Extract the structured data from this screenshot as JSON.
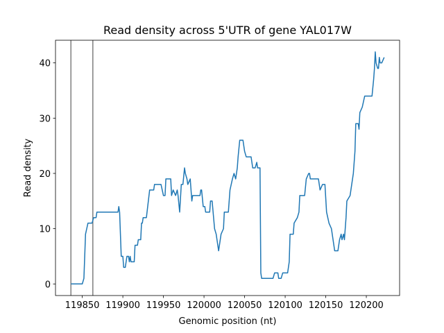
{
  "chart_data": {
    "type": "line",
    "title": "Read density across 5'UTR of gene YAL017W",
    "xlabel": "Genomic position (nt)",
    "ylabel": "Read density",
    "color": "#1f77b4",
    "vlines": [
      119836,
      119863
    ],
    "vline_color": "#7f7f7f",
    "x": [
      119836,
      119850,
      119852,
      119854,
      119857,
      119862,
      119864,
      119867,
      119868,
      119894,
      119895,
      119896,
      119898,
      119900,
      119901,
      119903,
      119905,
      119907,
      119908,
      119909,
      119910,
      119914,
      119915,
      119918,
      119919,
      119922,
      119923,
      119924,
      119925,
      119929,
      119933,
      119938,
      119939,
      119947,
      119950,
      119952,
      119953,
      119959,
      119960,
      119962,
      119965,
      119967,
      119968,
      119970,
      119972,
      119974,
      119976,
      119977,
      119979,
      119980,
      119983,
      119985,
      119986,
      119995,
      119996,
      119997,
      119999,
      120001,
      120002,
      120007,
      120008,
      120010,
      120013,
      120015,
      120018,
      120021,
      120024,
      120025,
      120030,
      120032,
      120035,
      120037,
      120039,
      120041,
      120042,
      120044,
      120048,
      120050,
      120052,
      120058,
      120060,
      120063,
      120065,
      120066,
      120069,
      120070,
      120071,
      120085,
      120087,
      120091,
      120092,
      120095,
      120097,
      120103,
      120105,
      120106,
      120110,
      120111,
      120115,
      120117,
      120118,
      120124,
      120126,
      120129,
      120130,
      120131,
      120141,
      120143,
      120146,
      120149,
      120151,
      120154,
      120157,
      120158,
      120161,
      120165,
      120167,
      120169,
      120170,
      120172,
      120173,
      120175,
      120176,
      120180,
      120182,
      120184,
      120186,
      120187,
      120190,
      120191,
      120192,
      120195,
      120198,
      120207,
      120209,
      120210,
      120211,
      120212,
      120214,
      120215,
      120216,
      120217,
      120219,
      120222
    ],
    "values": [
      0,
      0,
      1,
      9,
      11,
      11,
      12,
      12,
      13,
      13,
      14,
      13,
      5,
      5,
      3,
      3,
      5,
      5,
      4,
      5,
      4,
      4,
      7,
      7,
      8,
      8,
      11,
      11,
      12,
      12,
      17,
      17,
      18,
      18,
      16,
      16,
      19,
      19,
      16,
      17,
      16,
      17,
      16,
      13,
      18,
      18,
      21,
      20,
      19,
      18,
      19,
      15,
      16,
      16,
      17,
      17,
      14,
      14,
      13,
      13,
      15,
      15,
      10,
      9,
      6,
      9,
      10,
      13,
      13,
      17,
      19,
      20,
      19,
      21,
      23,
      26,
      26,
      24,
      23,
      23,
      21,
      21,
      22,
      21,
      21,
      2,
      1,
      1,
      2,
      2,
      1,
      1,
      2,
      2,
      4,
      9,
      9,
      11,
      12,
      13,
      16,
      16,
      19,
      20,
      20,
      19,
      19,
      17,
      18,
      18,
      13,
      11,
      10,
      9,
      6,
      6,
      8,
      9,
      8,
      9,
      8,
      12,
      15,
      16,
      18,
      20,
      24,
      29,
      29,
      28,
      31,
      32,
      34,
      34,
      37,
      39,
      42,
      40,
      39,
      39,
      41,
      40,
      40,
      41
    ],
    "xlim": [
      119817,
      120241
    ],
    "ylim": [
      -2.1,
      44.1
    ],
    "xticks": [
      119850,
      119900,
      119950,
      120000,
      120050,
      120100,
      120150,
      120200
    ],
    "yticks": [
      0,
      10,
      20,
      30,
      40
    ]
  }
}
